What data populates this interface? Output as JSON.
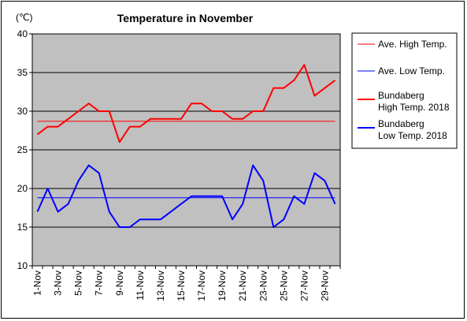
{
  "chart_data": {
    "type": "line",
    "title": "Temperature in November",
    "ylabel": "(℃)",
    "ylim": [
      10,
      40
    ],
    "yticks": [
      10,
      15,
      20,
      25,
      30,
      35,
      40
    ],
    "grid": true,
    "legend_position": "right",
    "categories": [
      "1-Nov",
      "2-Nov",
      "3-Nov",
      "4-Nov",
      "5-Nov",
      "6-Nov",
      "7-Nov",
      "8-Nov",
      "9-Nov",
      "10-Nov",
      "11-Nov",
      "12-Nov",
      "13-Nov",
      "14-Nov",
      "15-Nov",
      "16-Nov",
      "17-Nov",
      "18-Nov",
      "19-Nov",
      "20-Nov",
      "21-Nov",
      "22-Nov",
      "23-Nov",
      "24-Nov",
      "25-Nov",
      "26-Nov",
      "27-Nov",
      "28-Nov",
      "29-Nov",
      "30-Nov"
    ],
    "xtick_labels": [
      "1-Nov",
      "3-Nov",
      "5-Nov",
      "7-Nov",
      "9-Nov",
      "11-Nov",
      "13-Nov",
      "15-Nov",
      "17-Nov",
      "19-Nov",
      "21-Nov",
      "23-Nov",
      "25-Nov",
      "27-Nov",
      "29-Nov"
    ],
    "series": [
      {
        "name": "Ave. High Temp.",
        "color": "#ff0000",
        "style": "thin",
        "values": [
          28.7,
          28.7,
          28.7,
          28.7,
          28.7,
          28.7,
          28.7,
          28.7,
          28.7,
          28.7,
          28.7,
          28.7,
          28.7,
          28.7,
          28.7,
          28.7,
          28.7,
          28.7,
          28.7,
          28.7,
          28.7,
          28.7,
          28.7,
          28.7,
          28.7,
          28.7,
          28.7,
          28.7,
          28.7,
          28.7
        ]
      },
      {
        "name": "Ave. Low Temp.",
        "color": "#0000ff",
        "style": "thin",
        "values": [
          18.8,
          18.8,
          18.8,
          18.8,
          18.8,
          18.8,
          18.8,
          18.8,
          18.8,
          18.8,
          18.8,
          18.8,
          18.8,
          18.8,
          18.8,
          18.8,
          18.8,
          18.8,
          18.8,
          18.8,
          18.8,
          18.8,
          18.8,
          18.8,
          18.8,
          18.8,
          18.8,
          18.8,
          18.8,
          18.8
        ]
      },
      {
        "name": "Bundaberg High Temp. 2018",
        "name_lines": [
          "Bundaberg",
          "High Temp. 2018"
        ],
        "color": "#ff0000",
        "style": "thick",
        "values": [
          27,
          28,
          28,
          29,
          30,
          31,
          30,
          30,
          26,
          28,
          28,
          29,
          29,
          29,
          29,
          31,
          31,
          30,
          30,
          29,
          29,
          30,
          30,
          33,
          33,
          34,
          36,
          32,
          33,
          34
        ]
      },
      {
        "name": "Bundaberg Low Temp. 2018",
        "name_lines": [
          "Bundaberg",
          "Low Temp. 2018"
        ],
        "color": "#0000ff",
        "style": "thick",
        "values": [
          17,
          20,
          17,
          18,
          21,
          23,
          22,
          17,
          15,
          15,
          16,
          16,
          16,
          17,
          18,
          19,
          19,
          19,
          19,
          16,
          18,
          23,
          21,
          15,
          16,
          19,
          18,
          22,
          21,
          18
        ]
      }
    ]
  }
}
